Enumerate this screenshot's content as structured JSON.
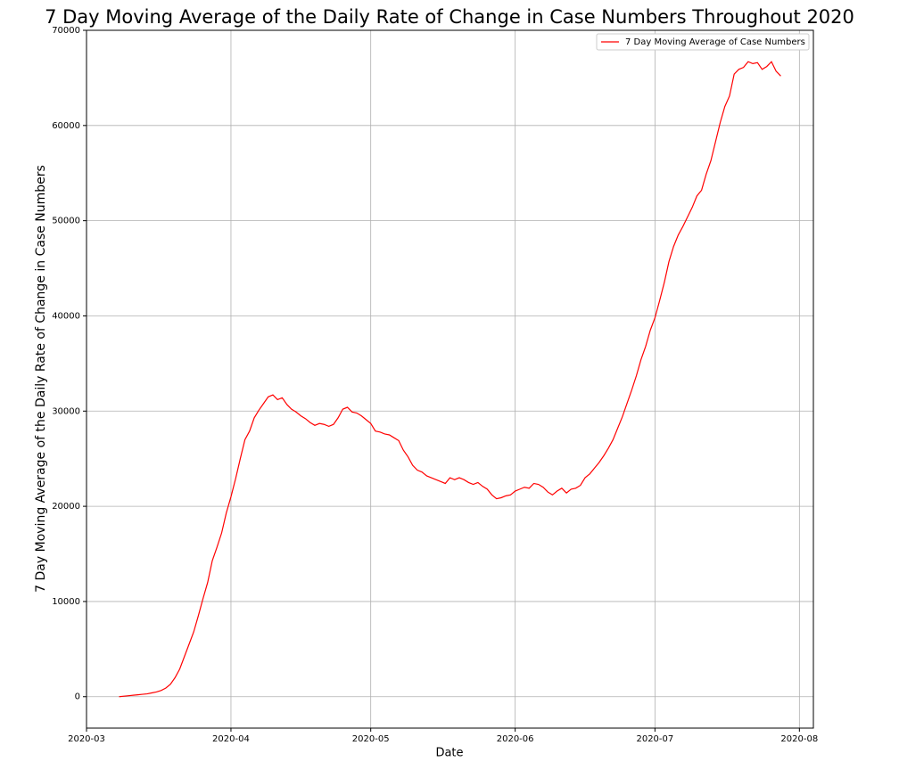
{
  "chart_data": {
    "type": "line",
    "title": "7 Day Moving Average of the Daily Rate of Change in Case Numbers Throughout 2020",
    "xlabel": "Date",
    "ylabel": "7 Day Moving Average of the Daily Rate of Change in Case Numbers",
    "x": [
      7,
      8,
      9,
      10,
      11,
      12,
      13,
      14,
      15,
      16,
      17,
      18,
      19,
      20,
      21,
      22,
      23,
      24,
      25,
      26,
      27,
      28,
      29,
      30,
      31,
      32,
      33,
      34,
      35,
      36,
      37,
      38,
      39,
      40,
      41,
      42,
      43,
      44,
      45,
      46,
      47,
      48,
      49,
      50,
      51,
      52,
      53,
      54,
      55,
      56,
      57,
      58,
      59,
      60,
      61,
      62,
      63,
      64,
      65,
      66,
      67,
      68,
      69,
      70,
      71,
      72,
      73,
      74,
      75,
      76,
      77,
      78,
      79,
      80,
      81,
      82,
      83,
      84,
      85,
      86,
      87,
      88,
      89,
      90,
      91,
      92,
      93,
      94,
      95,
      96,
      97,
      98,
      99,
      100,
      101,
      102,
      103,
      104,
      105,
      106,
      107,
      108,
      109,
      110,
      111,
      112,
      113,
      114,
      115,
      116,
      117,
      118,
      119,
      120,
      121,
      122,
      123,
      124,
      125,
      126,
      127,
      128,
      129,
      130,
      131,
      132,
      133,
      134,
      135,
      136,
      137,
      138,
      139,
      140,
      141,
      142,
      143,
      144,
      145,
      146,
      147,
      148,
      149
    ],
    "series": [
      {
        "name": "7 Day Moving Average of Case Numbers",
        "color": "#ff0000",
        "values": [
          0,
          50,
          100,
          150,
          200,
          250,
          300,
          400,
          500,
          650,
          900,
          1300,
          2000,
          2900,
          4200,
          5500,
          6800,
          8500,
          10300,
          12000,
          14300,
          15700,
          17200,
          19300,
          21000,
          22900,
          25000,
          27000,
          27900,
          29300,
          30100,
          30800,
          31500,
          31700,
          31200,
          31400,
          30700,
          30200,
          29900,
          29500,
          29200,
          28800,
          28500,
          28700,
          28600,
          28400,
          28600,
          29300,
          30200,
          30400,
          29900,
          29800,
          29500,
          29100,
          28700,
          27900,
          27800,
          27600,
          27500,
          27200,
          26900,
          25900,
          25200,
          24300,
          23800,
          23600,
          23200,
          23000,
          22800,
          22600,
          22400,
          23000,
          22800,
          23000,
          22800,
          22500,
          22300,
          22500,
          22100,
          21800,
          21200,
          20800,
          20900,
          21100,
          21200,
          21600,
          21800,
          22000,
          21900,
          22400,
          22300,
          22000,
          21500,
          21200,
          21600,
          21900,
          21400,
          21800,
          21900,
          22200,
          23000,
          23400,
          24000,
          24600,
          25300,
          26100,
          27000,
          28200,
          29400,
          30800,
          32200,
          33700,
          35400,
          36800,
          38500,
          39800,
          41600,
          43500,
          45700,
          47300,
          48500,
          49400,
          50400,
          51400,
          52600,
          53200,
          54900,
          56300,
          58300,
          60300,
          62000,
          63100,
          65400,
          65900,
          66100,
          66700,
          66500,
          66600,
          65900,
          66200,
          66700,
          65700,
          65200
        ]
      }
    ],
    "xlim": [
      0,
      156
    ],
    "xticks": [
      {
        "value": 0,
        "label": "2020-03"
      },
      {
        "value": 31,
        "label": "2020-04"
      },
      {
        "value": 61,
        "label": "2020-05"
      },
      {
        "value": 92,
        "label": "2020-06"
      },
      {
        "value": 122,
        "label": "2020-07"
      },
      {
        "value": 153,
        "label": "2020-08"
      }
    ],
    "ylim": [
      -3300,
      70000
    ],
    "yticks": [
      0,
      10000,
      20000,
      30000,
      40000,
      50000,
      60000,
      70000
    ],
    "grid": true,
    "legend": "upper right"
  }
}
